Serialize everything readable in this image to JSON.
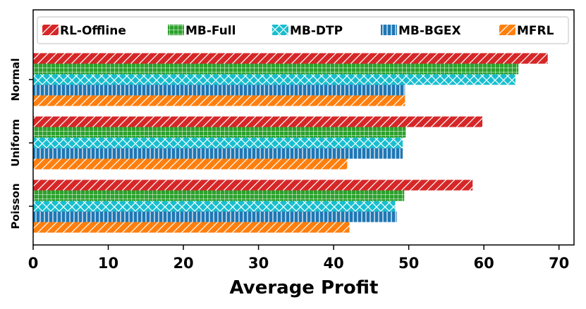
{
  "chart_data": {
    "type": "bar",
    "orientation": "horizontal",
    "title": "",
    "xlabel": "Average Profit",
    "ylabel": "",
    "xlim": [
      0,
      72
    ],
    "xticks": [
      "0",
      "10",
      "20",
      "30",
      "40",
      "50",
      "60",
      "70"
    ],
    "grid": false,
    "legend_position": "top",
    "categories": [
      "Normal",
      "Uniform",
      "Poisson"
    ],
    "series": [
      {
        "name": "RL-Offline",
        "color": "#d62728",
        "hatch": "diagonal",
        "values": [
          68.5,
          59.8,
          58.5
        ]
      },
      {
        "name": "MB-Full",
        "color": "#2ca02c",
        "hatch": "grid",
        "values": [
          64.6,
          49.6,
          49.4
        ]
      },
      {
        "name": "MB-DTP",
        "color": "#17becf",
        "hatch": "cross",
        "values": [
          64.2,
          49.2,
          48.2
        ]
      },
      {
        "name": "MB-BGEX",
        "color": "#1f77b4",
        "hatch": "vertical",
        "values": [
          49.5,
          49.2,
          48.4
        ]
      },
      {
        "name": "MFRL",
        "color": "#ff7f0e",
        "hatch": "diagonal",
        "values": [
          49.5,
          41.8,
          42.1
        ]
      }
    ]
  }
}
